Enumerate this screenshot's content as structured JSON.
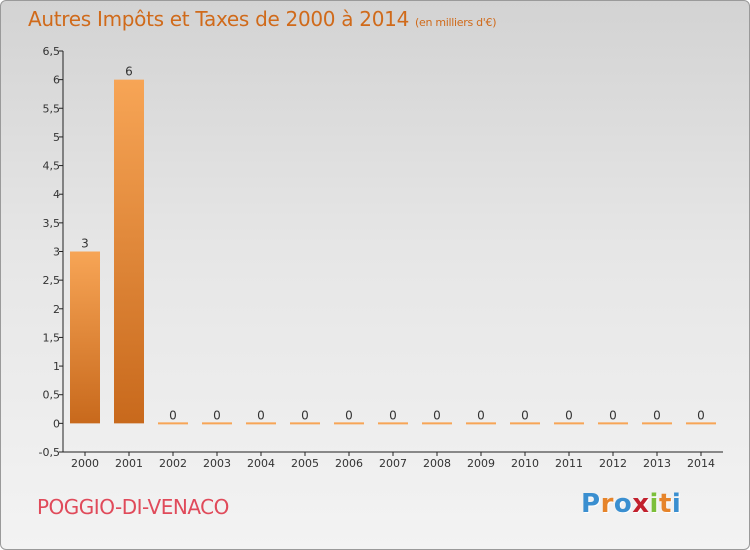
{
  "header": {
    "title": "Autres Impôts et Taxes de 2000 à 2014",
    "unit": "(en milliers d'€)"
  },
  "footer": {
    "commune": "POGGIO-DI-VENACO",
    "logo_letters": [
      "P",
      "r",
      "o",
      "x",
      "i",
      "t",
      "i"
    ],
    "logo_colors": [
      "#3a8fd0",
      "#e6842a",
      "#3a8fd0",
      "#c2212e",
      "#7cbf3a",
      "#e6842a",
      "#3a8fd0"
    ]
  },
  "chart_data": {
    "type": "bar",
    "title": "Autres Impôts et Taxes de 2000 à 2014",
    "subtitle": "(en milliers d'€)",
    "xlabel": "",
    "ylabel": "",
    "categories": [
      "2000",
      "2001",
      "2002",
      "2003",
      "2004",
      "2005",
      "2006",
      "2007",
      "2008",
      "2009",
      "2010",
      "2011",
      "2012",
      "2013",
      "2014"
    ],
    "values": [
      3,
      6,
      0,
      0,
      0,
      0,
      0,
      0,
      0,
      0,
      0,
      0,
      0,
      0,
      0
    ],
    "data_labels": [
      "3",
      "6",
      "0",
      "0",
      "0",
      "0",
      "0",
      "0",
      "0",
      "0",
      "0",
      "0",
      "0",
      "0",
      "0"
    ],
    "ylim": [
      -0.5,
      6.5
    ],
    "yticks": [
      "-0,5",
      "0",
      "0,5",
      "1",
      "1,5",
      "2",
      "2,5",
      "3",
      "3,5",
      "4",
      "4,5",
      "5",
      "5,5",
      "6",
      "6,5"
    ],
    "ytick_values": [
      -0.5,
      0,
      0.5,
      1,
      1.5,
      2,
      2.5,
      3,
      3.5,
      4,
      4.5,
      5,
      5.5,
      6,
      6.5
    ],
    "grid": false,
    "legend": "none",
    "bar_color_light": "#f7a556",
    "bar_color_dark": "#c8691c"
  }
}
